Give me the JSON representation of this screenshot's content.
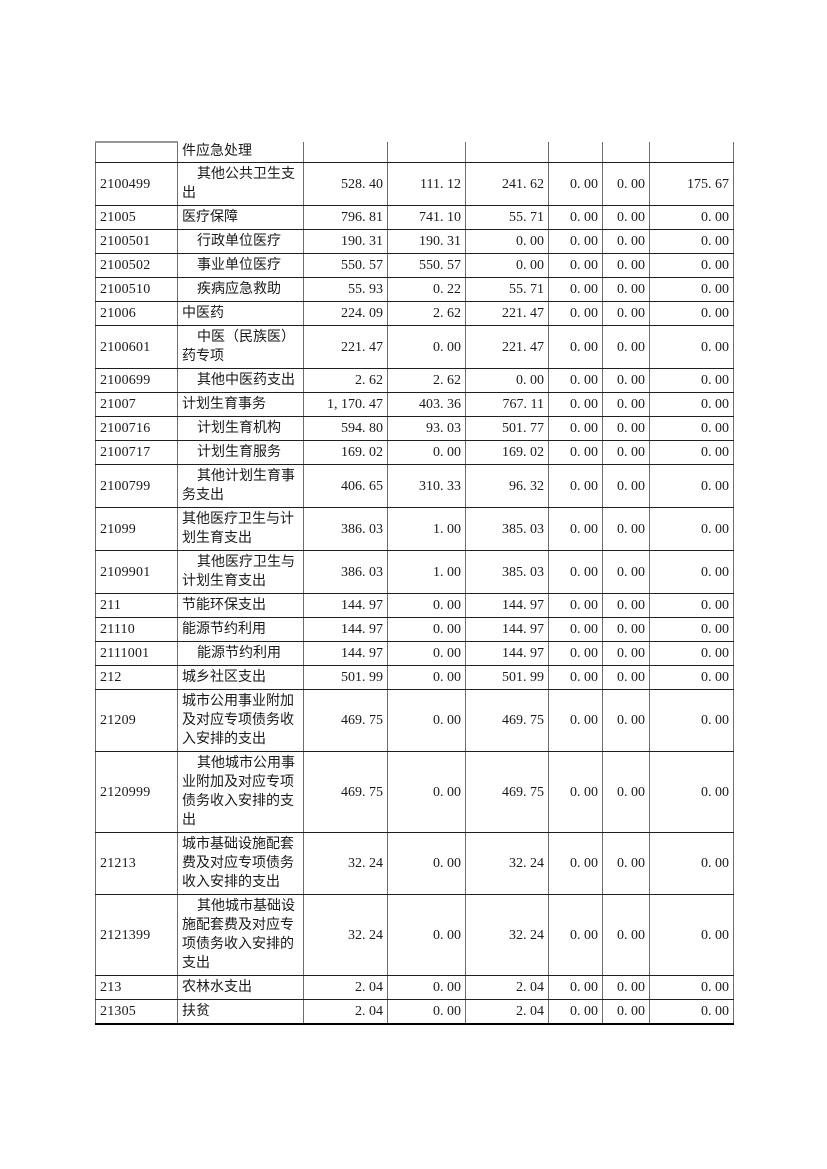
{
  "page": {
    "background_color": "#ffffff",
    "border_color_horizontal": "#1f1f1f",
    "border_color_vertical": "#6e6e6e"
  },
  "table": {
    "description_of_columns": [
      "code",
      "name",
      "value1",
      "value2",
      "value3",
      "value4",
      "value5",
      "value6"
    ],
    "rows": [
      {
        "code": "",
        "name": "件应急处理",
        "indent": false,
        "partial": true,
        "values": [
          "",
          "",
          "",
          "",
          "",
          ""
        ]
      },
      {
        "code": "2100499",
        "name": "其他公共卫生支出",
        "indent": true,
        "partial": false,
        "values": [
          "528. 40",
          "111. 12",
          "241. 62",
          "0. 00",
          "0. 00",
          "175. 67"
        ]
      },
      {
        "code": "21005",
        "name": "医疗保障",
        "indent": false,
        "partial": false,
        "values": [
          "796. 81",
          "741. 10",
          "55. 71",
          "0. 00",
          "0. 00",
          "0. 00"
        ]
      },
      {
        "code": "2100501",
        "name": "行政单位医疗",
        "indent": true,
        "partial": false,
        "values": [
          "190. 31",
          "190. 31",
          "0. 00",
          "0. 00",
          "0. 00",
          "0. 00"
        ]
      },
      {
        "code": "2100502",
        "name": "事业单位医疗",
        "indent": true,
        "partial": false,
        "values": [
          "550. 57",
          "550. 57",
          "0. 00",
          "0. 00",
          "0. 00",
          "0. 00"
        ]
      },
      {
        "code": "2100510",
        "name": "疾病应急救助",
        "indent": true,
        "partial": false,
        "values": [
          "55. 93",
          "0. 22",
          "55. 71",
          "0. 00",
          "0. 00",
          "0. 00"
        ]
      },
      {
        "code": "21006",
        "name": "中医药",
        "indent": false,
        "partial": false,
        "values": [
          "224. 09",
          "2. 62",
          "221. 47",
          "0. 00",
          "0. 00",
          "0. 00"
        ]
      },
      {
        "code": "2100601",
        "name": "中医（民族医）药专项",
        "indent": true,
        "partial": false,
        "values": [
          "221. 47",
          "0. 00",
          "221. 47",
          "0. 00",
          "0. 00",
          "0. 00"
        ]
      },
      {
        "code": "2100699",
        "name": "其他中医药支出",
        "indent": true,
        "partial": false,
        "values": [
          "2. 62",
          "2. 62",
          "0. 00",
          "0. 00",
          "0. 00",
          "0. 00"
        ]
      },
      {
        "code": "21007",
        "name": "计划生育事务",
        "indent": false,
        "partial": false,
        "values": [
          "1, 170. 47",
          "403. 36",
          "767. 11",
          "0. 00",
          "0. 00",
          "0. 00"
        ]
      },
      {
        "code": "2100716",
        "name": "计划生育机构",
        "indent": true,
        "partial": false,
        "values": [
          "594. 80",
          "93. 03",
          "501. 77",
          "0. 00",
          "0. 00",
          "0. 00"
        ]
      },
      {
        "code": "2100717",
        "name": "计划生育服务",
        "indent": true,
        "partial": false,
        "values": [
          "169. 02",
          "0. 00",
          "169. 02",
          "0. 00",
          "0. 00",
          "0. 00"
        ]
      },
      {
        "code": "2100799",
        "name": "其他计划生育事务支出",
        "indent": true,
        "partial": false,
        "values": [
          "406. 65",
          "310. 33",
          "96. 32",
          "0. 00",
          "0. 00",
          "0. 00"
        ]
      },
      {
        "code": "21099",
        "name": "其他医疗卫生与计划生育支出",
        "indent": false,
        "partial": false,
        "values": [
          "386. 03",
          "1. 00",
          "385. 03",
          "0. 00",
          "0. 00",
          "0. 00"
        ]
      },
      {
        "code": "2109901",
        "name": "其他医疗卫生与计划生育支出",
        "indent": true,
        "partial": false,
        "values": [
          "386. 03",
          "1. 00",
          "385. 03",
          "0. 00",
          "0. 00",
          "0. 00"
        ]
      },
      {
        "code": "211",
        "name": "节能环保支出",
        "indent": false,
        "partial": false,
        "values": [
          "144. 97",
          "0. 00",
          "144. 97",
          "0. 00",
          "0. 00",
          "0. 00"
        ]
      },
      {
        "code": "21110",
        "name": "能源节约利用",
        "indent": false,
        "partial": false,
        "values": [
          "144. 97",
          "0. 00",
          "144. 97",
          "0. 00",
          "0. 00",
          "0. 00"
        ]
      },
      {
        "code": "2111001",
        "name": "能源节约利用",
        "indent": true,
        "partial": false,
        "values": [
          "144. 97",
          "0. 00",
          "144. 97",
          "0. 00",
          "0. 00",
          "0. 00"
        ]
      },
      {
        "code": "212",
        "name": "城乡社区支出",
        "indent": false,
        "partial": false,
        "values": [
          "501. 99",
          "0. 00",
          "501. 99",
          "0. 00",
          "0. 00",
          "0. 00"
        ]
      },
      {
        "code": "21209",
        "name": "城市公用事业附加及对应专项债务收入安排的支出",
        "indent": false,
        "partial": false,
        "values": [
          "469. 75",
          "0. 00",
          "469. 75",
          "0. 00",
          "0. 00",
          "0. 00"
        ]
      },
      {
        "code": "2120999",
        "name": "其他城市公用事业附加及对应专项债务收入安排的支出",
        "indent": true,
        "partial": false,
        "values": [
          "469. 75",
          "0. 00",
          "469. 75",
          "0. 00",
          "0. 00",
          "0. 00"
        ]
      },
      {
        "code": "21213",
        "name": "城市基础设施配套费及对应专项债务收入安排的支出",
        "indent": false,
        "partial": false,
        "values": [
          "32. 24",
          "0. 00",
          "32. 24",
          "0. 00",
          "0. 00",
          "0. 00"
        ]
      },
      {
        "code": "2121399",
        "name": "其他城市基础设施配套费及对应专项债务收入安排的支出",
        "indent": true,
        "partial": false,
        "values": [
          "32. 24",
          "0. 00",
          "32. 24",
          "0. 00",
          "0. 00",
          "0. 00"
        ]
      },
      {
        "code": "213",
        "name": "农林水支出",
        "indent": false,
        "partial": false,
        "values": [
          "2. 04",
          "0. 00",
          "2. 04",
          "0. 00",
          "0. 00",
          "0. 00"
        ]
      },
      {
        "code": "21305",
        "name": "扶贫",
        "indent": false,
        "partial": false,
        "values": [
          "2. 04",
          "0. 00",
          "2. 04",
          "0. 00",
          "0. 00",
          "0. 00"
        ]
      }
    ]
  }
}
